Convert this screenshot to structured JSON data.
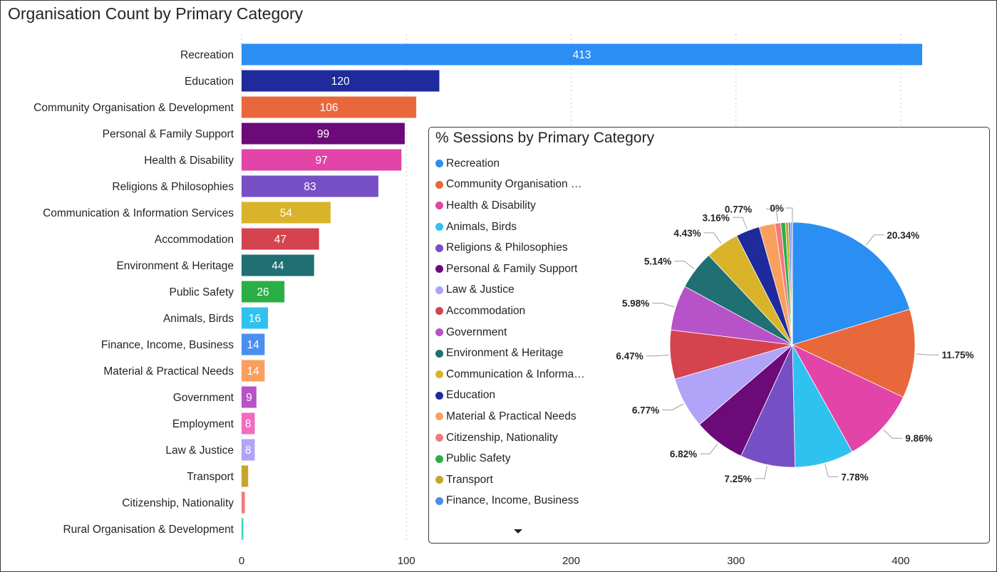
{
  "chart_data": [
    {
      "type": "bar",
      "orientation": "horizontal",
      "title": "Organisation Count by Primary Category",
      "xlim": [
        0,
        430
      ],
      "xticks": [
        0,
        100,
        200,
        300,
        400
      ],
      "grid": true,
      "categories": [
        "Recreation",
        "Education",
        "Community Organisation & Development",
        "Personal & Family Support",
        "Health & Disability",
        "Religions & Philosophies",
        "Communication & Information Services",
        "Accommodation",
        "Environment & Heritage",
        "Public Safety",
        "Animals, Birds",
        "Finance, Income, Business",
        "Material & Practical Needs",
        "Government",
        "Employment",
        "Law & Justice",
        "Transport",
        "Citizenship, Nationality",
        "Rural Organisation & Development"
      ],
      "values": [
        413,
        120,
        106,
        99,
        97,
        83,
        54,
        47,
        44,
        26,
        16,
        14,
        14,
        9,
        8,
        8,
        4,
        2,
        1
      ],
      "data_labels": [
        "413",
        "120",
        "106",
        "99",
        "97",
        "83",
        "54",
        "47",
        "44",
        "26",
        "16",
        "14",
        "14",
        "9",
        "8",
        "8",
        "",
        "",
        ""
      ],
      "colors": [
        "#2b8ef3",
        "#1f2b9c",
        "#e8683c",
        "#6b0a78",
        "#e244a8",
        "#774fc4",
        "#d9b32a",
        "#d5434f",
        "#1f6f73",
        "#2cae47",
        "#30c2ee",
        "#4a8ff0",
        "#fb9f5e",
        "#b852c8",
        "#f26cc0",
        "#b1a3f7",
        "#c6a52a",
        "#f4797e",
        "#3bd9b6"
      ]
    },
    {
      "type": "pie",
      "title": "% Sessions by Primary Category",
      "legend": [
        {
          "label": "Recreation",
          "color": "#2b8ef3"
        },
        {
          "label": "Community Organisation …",
          "color": "#e8683c"
        },
        {
          "label": "Health & Disability",
          "color": "#e244a8"
        },
        {
          "label": "Animals, Birds",
          "color": "#30c2ee"
        },
        {
          "label": "Religions & Philosophies",
          "color": "#774fc4"
        },
        {
          "label": "Personal & Family Support",
          "color": "#6b0a78"
        },
        {
          "label": "Law & Justice",
          "color": "#b1a3f7"
        },
        {
          "label": "Accommodation",
          "color": "#d5434f"
        },
        {
          "label": "Government",
          "color": "#b852c8"
        },
        {
          "label": "Environment & Heritage",
          "color": "#1f6f73"
        },
        {
          "label": "Communication & Informa…",
          "color": "#d9b32a"
        },
        {
          "label": "Education",
          "color": "#1f2b9c"
        },
        {
          "label": "Material & Practical Needs",
          "color": "#fb9f5e"
        },
        {
          "label": "Citizenship, Nationality",
          "color": "#f4797e"
        },
        {
          "label": "Public Safety",
          "color": "#2cae47"
        },
        {
          "label": "Transport",
          "color": "#c6a52a"
        },
        {
          "label": "Finance, Income, Business",
          "color": "#4a8ff0"
        }
      ],
      "slices": [
        {
          "value": 20.34,
          "label": "20.34%",
          "color": "#2b8ef3"
        },
        {
          "value": 11.75,
          "label": "11.75%",
          "color": "#e8683c"
        },
        {
          "value": 9.86,
          "label": "9.86%",
          "color": "#e244a8"
        },
        {
          "value": 7.78,
          "label": "7.78%",
          "color": "#30c2ee"
        },
        {
          "value": 7.25,
          "label": "7.25%",
          "color": "#774fc4"
        },
        {
          "value": 6.82,
          "label": "6.82%",
          "color": "#6b0a78"
        },
        {
          "value": 6.77,
          "label": "6.77%",
          "color": "#b1a3f7"
        },
        {
          "value": 6.47,
          "label": "6.47%",
          "color": "#d5434f"
        },
        {
          "value": 5.98,
          "label": "5.98%",
          "color": "#b852c8"
        },
        {
          "value": 5.14,
          "label": "5.14%",
          "color": "#1f6f73"
        },
        {
          "value": 4.43,
          "label": "4.43%",
          "color": "#d9b32a"
        },
        {
          "value": 3.16,
          "label": "3.16%",
          "color": "#1f2b9c"
        },
        {
          "value": 2.1,
          "label": "",
          "color": "#fb9f5e"
        },
        {
          "value": 0.77,
          "label": "0.77%",
          "color": "#f4797e"
        },
        {
          "value": 0.6,
          "label": "",
          "color": "#2cae47"
        },
        {
          "value": 0.4,
          "label": "",
          "color": "#c6a52a"
        },
        {
          "value": 0.3,
          "label": "",
          "color": "#4a8ff0"
        },
        {
          "value": 0.2,
          "label": "",
          "color": "#b852c8"
        },
        {
          "value": 0.02,
          "label": "0%",
          "color": "#b1a3f7"
        }
      ]
    }
  ]
}
